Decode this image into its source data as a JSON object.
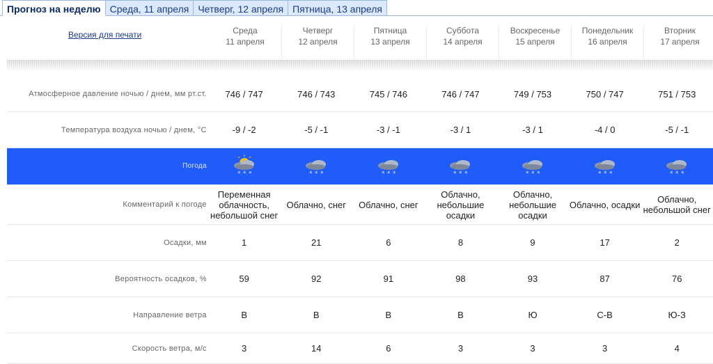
{
  "tabs": [
    "Прогноз на неделю",
    "Среда, 11 апреля",
    "Четверг, 12 апреля",
    "Пятница, 13 апреля"
  ],
  "print_link": "Версия для печати",
  "days": [
    {
      "day": "Среда",
      "date": "11 апреля",
      "pressure": "746 / 747",
      "temp": "-9 / -2",
      "icon": "partly-cloudy-snow-icon",
      "comment": "Переменная облачность, небольшой снег",
      "precip": "1",
      "prob": "59",
      "wind_dir": "В",
      "wind_speed": "3"
    },
    {
      "day": "Четверг",
      "date": "12 апреля",
      "pressure": "746 / 743",
      "temp": "-5 / -1",
      "icon": "cloudy-snow-icon",
      "comment": "Облачно, снег",
      "precip": "21",
      "prob": "92",
      "wind_dir": "В",
      "wind_speed": "14"
    },
    {
      "day": "Пятница",
      "date": "13 апреля",
      "pressure": "745 / 746",
      "temp": "-3 / -1",
      "icon": "cloudy-snow-icon",
      "comment": "Облачно, снег",
      "precip": "6",
      "prob": "91",
      "wind_dir": "В",
      "wind_speed": "6"
    },
    {
      "day": "Суббота",
      "date": "14 апреля",
      "pressure": "746 / 747",
      "temp": "-3 / 1",
      "icon": "cloudy-light-precip-icon",
      "comment": "Облачно, небольшие осадки",
      "precip": "8",
      "prob": "98",
      "wind_dir": "В",
      "wind_speed": "3"
    },
    {
      "day": "Воскресенье",
      "date": "15 апреля",
      "pressure": "749 / 753",
      "temp": "-3 / 1",
      "icon": "cloudy-light-precip-icon",
      "comment": "Облачно, небольшие осадки",
      "precip": "9",
      "prob": "93",
      "wind_dir": "Ю",
      "wind_speed": "3"
    },
    {
      "day": "Понедельник",
      "date": "16 апреля",
      "pressure": "750 / 747",
      "temp": "-4 / 0",
      "icon": "cloudy-precip-icon",
      "comment": "Облачно, осадки",
      "precip": "17",
      "prob": "87",
      "wind_dir": "С-В",
      "wind_speed": "3"
    },
    {
      "day": "Вторник",
      "date": "17 апреля",
      "pressure": "751 / 753",
      "temp": "-5 / -1",
      "icon": "cloudy-light-snow-icon",
      "comment": "Облачно, небольшой снег",
      "precip": "2",
      "prob": "76",
      "wind_dir": "Ю-З",
      "wind_speed": "4"
    }
  ],
  "rows": [
    {
      "key": "pressure",
      "label": "Атмосферное давление ночью / днем, мм рт.ст."
    },
    {
      "key": "temp",
      "label": "Температура воздуха ночью / днем, °C"
    },
    {
      "key": "icon",
      "label": "Погода"
    },
    {
      "key": "comment",
      "label": "Комментарий к погоде"
    },
    {
      "key": "precip",
      "label": "Осадки, мм"
    },
    {
      "key": "prob",
      "label": "Вероятность осадков, %"
    },
    {
      "key": "wind_dir",
      "label": "Направление ветра"
    },
    {
      "key": "wind_speed",
      "label": "Скорость ветра, м/с"
    }
  ],
  "colors": {
    "band": "#1f5cf9",
    "tab_bg": "#dce9fb",
    "link": "#1a3b8a"
  }
}
